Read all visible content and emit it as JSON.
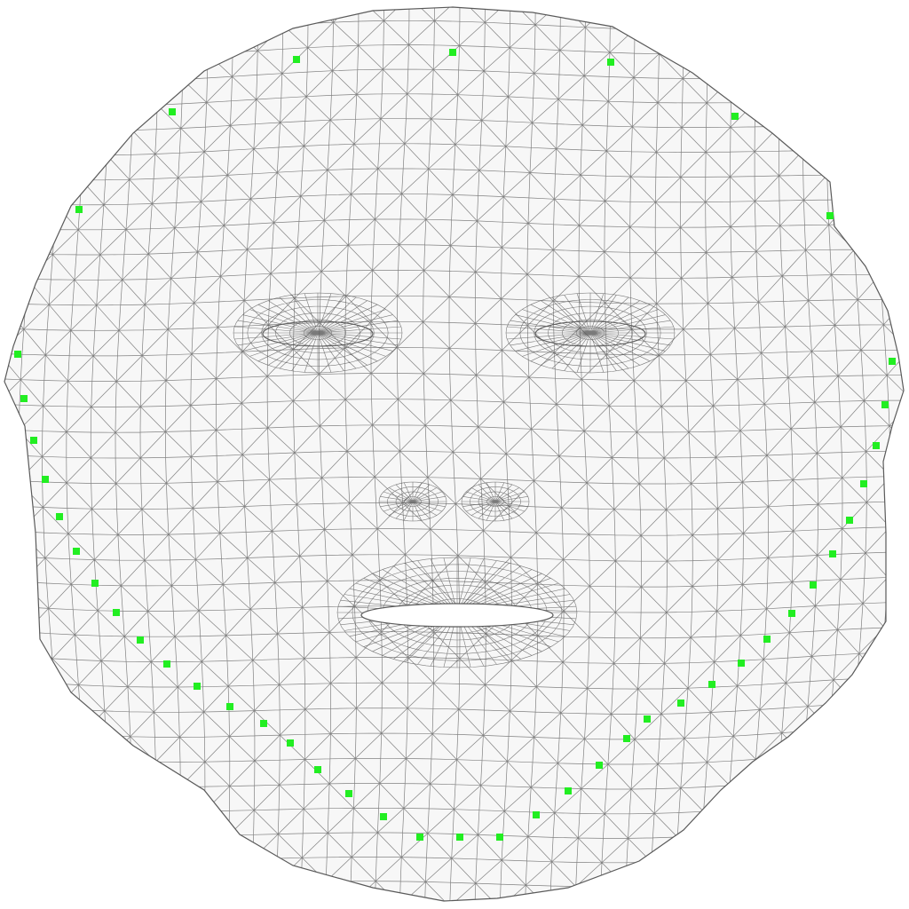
{
  "colors": {
    "background": "#ffffff",
    "mesh_fill": "#f7f7f7",
    "mesh_line": "#5a5a5a",
    "landmark": "#22ee22",
    "cavity": "#ffffff"
  },
  "landmark_count": 44
}
